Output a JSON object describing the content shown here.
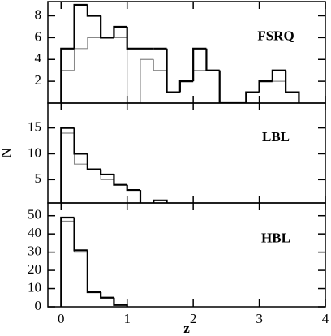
{
  "chart_data": [
    {
      "type": "histogram",
      "label": "FSRQ",
      "bins": [
        0,
        0.2,
        0.4,
        0.6,
        0.8,
        1.0,
        1.2,
        1.4,
        1.6,
        1.8,
        2.0,
        2.2,
        2.4,
        2.6,
        2.8,
        3.0,
        3.2,
        3.4,
        3.6
      ],
      "series": [
        {
          "color": "#000000",
          "values": [
            5,
            9,
            8,
            6,
            7,
            5,
            5,
            5,
            1,
            2,
            5,
            3,
            0,
            0,
            1,
            2,
            3,
            1
          ]
        },
        {
          "color": "#888888",
          "values": [
            3,
            5,
            6,
            6,
            6,
            0,
            4,
            3,
            1,
            2,
            3,
            3,
            0,
            0,
            1,
            2,
            2,
            1
          ]
        }
      ],
      "xlim": [
        -0.2,
        4
      ],
      "ylim": [
        0,
        9.3
      ],
      "yticks": [
        2,
        4,
        6,
        8
      ]
    },
    {
      "type": "histogram",
      "label": "LBL",
      "ylabel": "N",
      "bins": [
        0,
        0.2,
        0.4,
        0.6,
        0.8,
        1.0,
        1.2,
        1.4,
        1.6
      ],
      "series": [
        {
          "color": "#000000",
          "values": [
            15,
            10,
            7,
            6,
            4,
            3,
            0,
            1
          ]
        },
        {
          "color": "#888888",
          "values": [
            14,
            8,
            7,
            5,
            4,
            3,
            0,
            1
          ]
        }
      ],
      "xlim": [
        -0.2,
        4
      ],
      "ylim": [
        0.5,
        19.8
      ],
      "yticks": [
        5,
        10,
        15
      ]
    },
    {
      "type": "histogram",
      "label": "HBL",
      "xlabel": "z",
      "bins": [
        0,
        0.2,
        0.4,
        0.6,
        0.8,
        1.0
      ],
      "series": [
        {
          "color": "#000000",
          "values": [
            49,
            31,
            8,
            5,
            1
          ]
        },
        {
          "color": "#888888",
          "values": [
            47,
            30,
            8,
            5,
            1
          ]
        }
      ],
      "xlim": [
        -0.2,
        4
      ],
      "ylim": [
        0,
        57
      ],
      "xticks": [
        0,
        1,
        2,
        3,
        4
      ],
      "yticks": [
        0,
        10,
        20,
        30,
        40,
        50
      ]
    }
  ]
}
